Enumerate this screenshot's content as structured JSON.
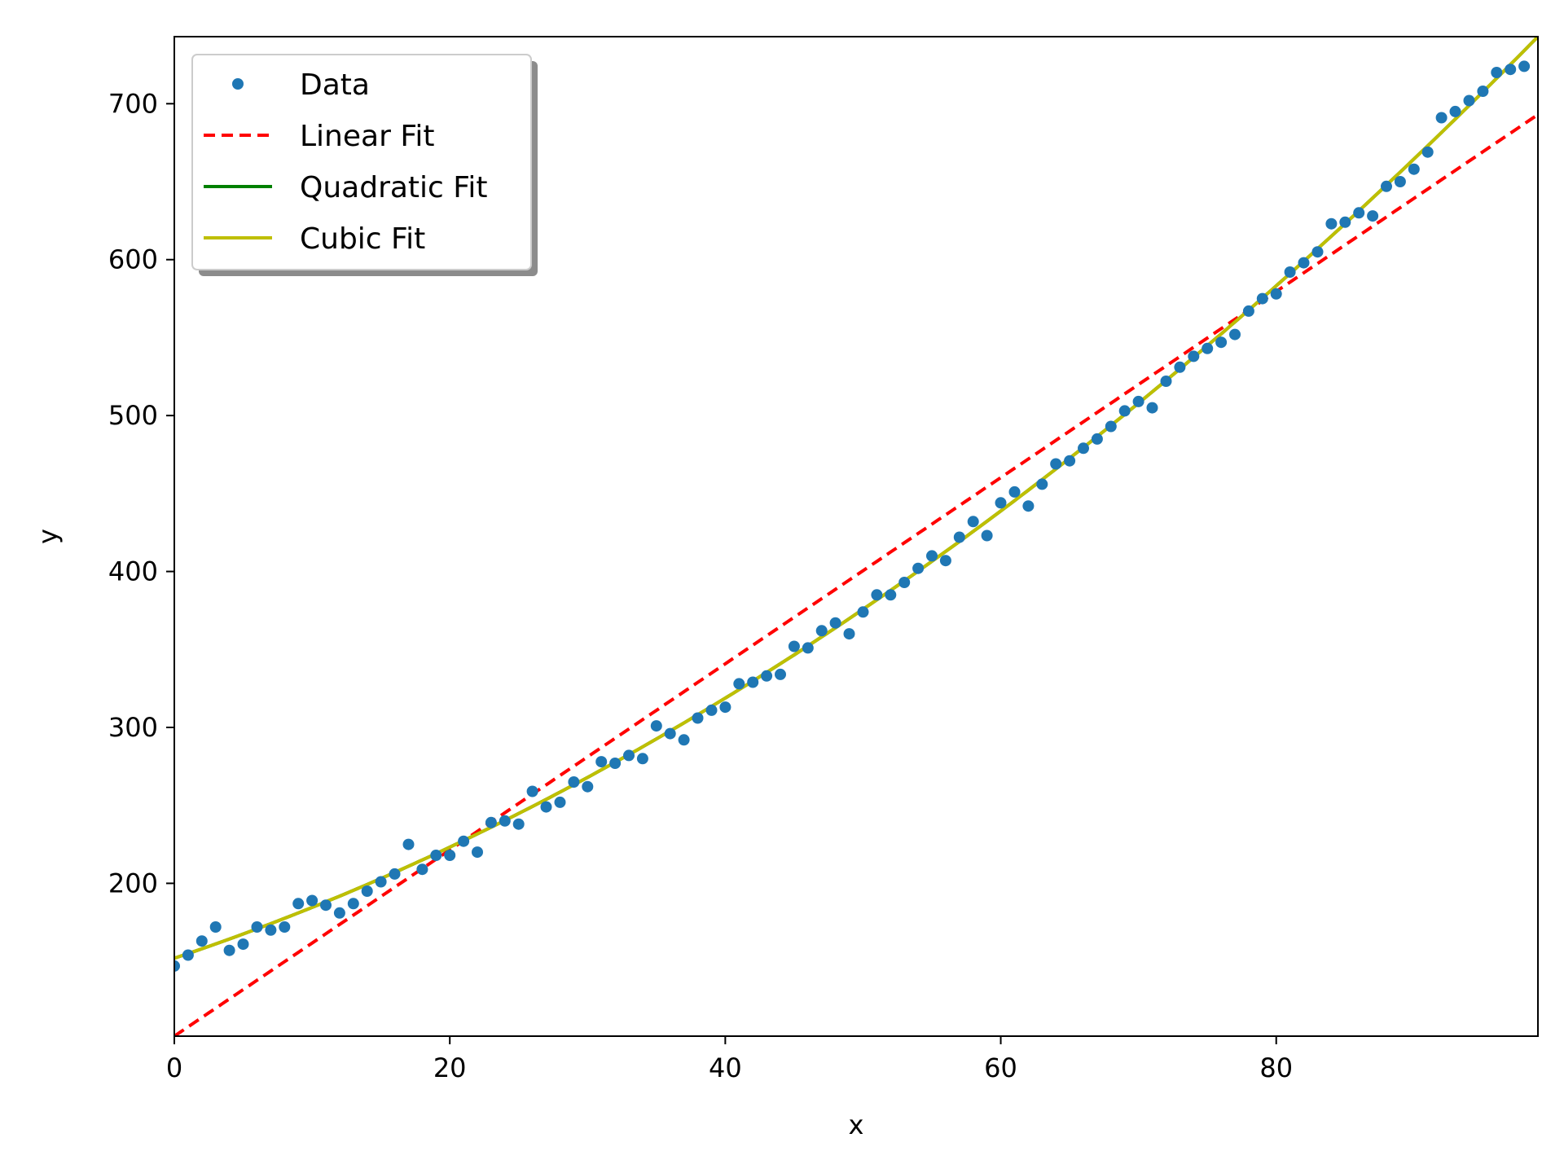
{
  "chart_data": {
    "type": "scatter",
    "title": "",
    "xlabel": "x",
    "ylabel": "y",
    "xlim": [
      0,
      99
    ],
    "ylim": [
      102,
      743
    ],
    "xticks": [
      0,
      20,
      40,
      60,
      80
    ],
    "yticks": [
      200,
      300,
      400,
      500,
      600,
      700
    ],
    "grid": false,
    "legend_position": "upper-left",
    "data_series": {
      "name": "Data",
      "color": "#1f77b4",
      "marker": "circle",
      "x": [
        0,
        1,
        2,
        3,
        4,
        5,
        6,
        7,
        8,
        9,
        10,
        11,
        12,
        13,
        14,
        15,
        16,
        17,
        18,
        19,
        20,
        21,
        22,
        23,
        24,
        25,
        26,
        27,
        28,
        29,
        30,
        31,
        32,
        33,
        34,
        35,
        36,
        37,
        38,
        39,
        40,
        41,
        42,
        43,
        44,
        45,
        46,
        47,
        48,
        49,
        50,
        51,
        52,
        53,
        54,
        55,
        56,
        57,
        58,
        59,
        60,
        61,
        62,
        63,
        64,
        65,
        66,
        67,
        68,
        69,
        70,
        71,
        72,
        73,
        74,
        75,
        76,
        77,
        78,
        79,
        80,
        81,
        82,
        83,
        84,
        85,
        86,
        87,
        88,
        89,
        90,
        91,
        92,
        93,
        94,
        95,
        96,
        97,
        98
      ],
      "y": [
        147,
        154,
        163,
        172,
        157,
        161,
        172,
        170,
        172,
        187,
        189,
        186,
        181,
        187,
        195,
        201,
        206,
        225,
        209,
        218,
        218,
        227,
        220,
        239,
        240,
        238,
        259,
        249,
        252,
        265,
        262,
        278,
        277,
        282,
        280,
        301,
        296,
        292,
        306,
        311,
        313,
        328,
        329,
        333,
        334,
        352,
        351,
        362,
        367,
        360,
        374,
        385,
        385,
        393,
        402,
        410,
        407,
        422,
        432,
        423,
        444,
        451,
        442,
        456,
        469,
        471,
        479,
        485,
        493,
        503,
        509,
        505,
        522,
        531,
        538,
        543,
        547,
        552,
        567,
        575,
        578,
        592,
        598,
        605,
        623,
        624,
        630,
        628,
        647,
        650,
        658,
        669,
        691,
        695,
        702,
        708,
        720,
        722,
        724
      ]
    },
    "fits": [
      {
        "name": "Linear Fit",
        "color": "#ff0000",
        "style": "dashed",
        "degree": 1,
        "coefficients": [
          102,
          5.97
        ]
      },
      {
        "name": "Quadratic Fit",
        "color": "#008000",
        "style": "solid",
        "degree": 2,
        "coefficients": [
          152,
          2.95,
          0.0305
        ]
      },
      {
        "name": "Cubic Fit",
        "color": "#bfbf00",
        "style": "solid",
        "degree": 3,
        "coefficients": [
          152,
          2.95,
          0.0305,
          0
        ]
      }
    ],
    "legend": [
      {
        "label": "Data",
        "kind": "marker",
        "color": "#1f77b4"
      },
      {
        "label": "Linear Fit",
        "kind": "dashed-line",
        "color": "#ff0000"
      },
      {
        "label": "Quadratic Fit",
        "kind": "line",
        "color": "#008000"
      },
      {
        "label": "Cubic Fit",
        "kind": "line",
        "color": "#bfbf00"
      }
    ]
  }
}
